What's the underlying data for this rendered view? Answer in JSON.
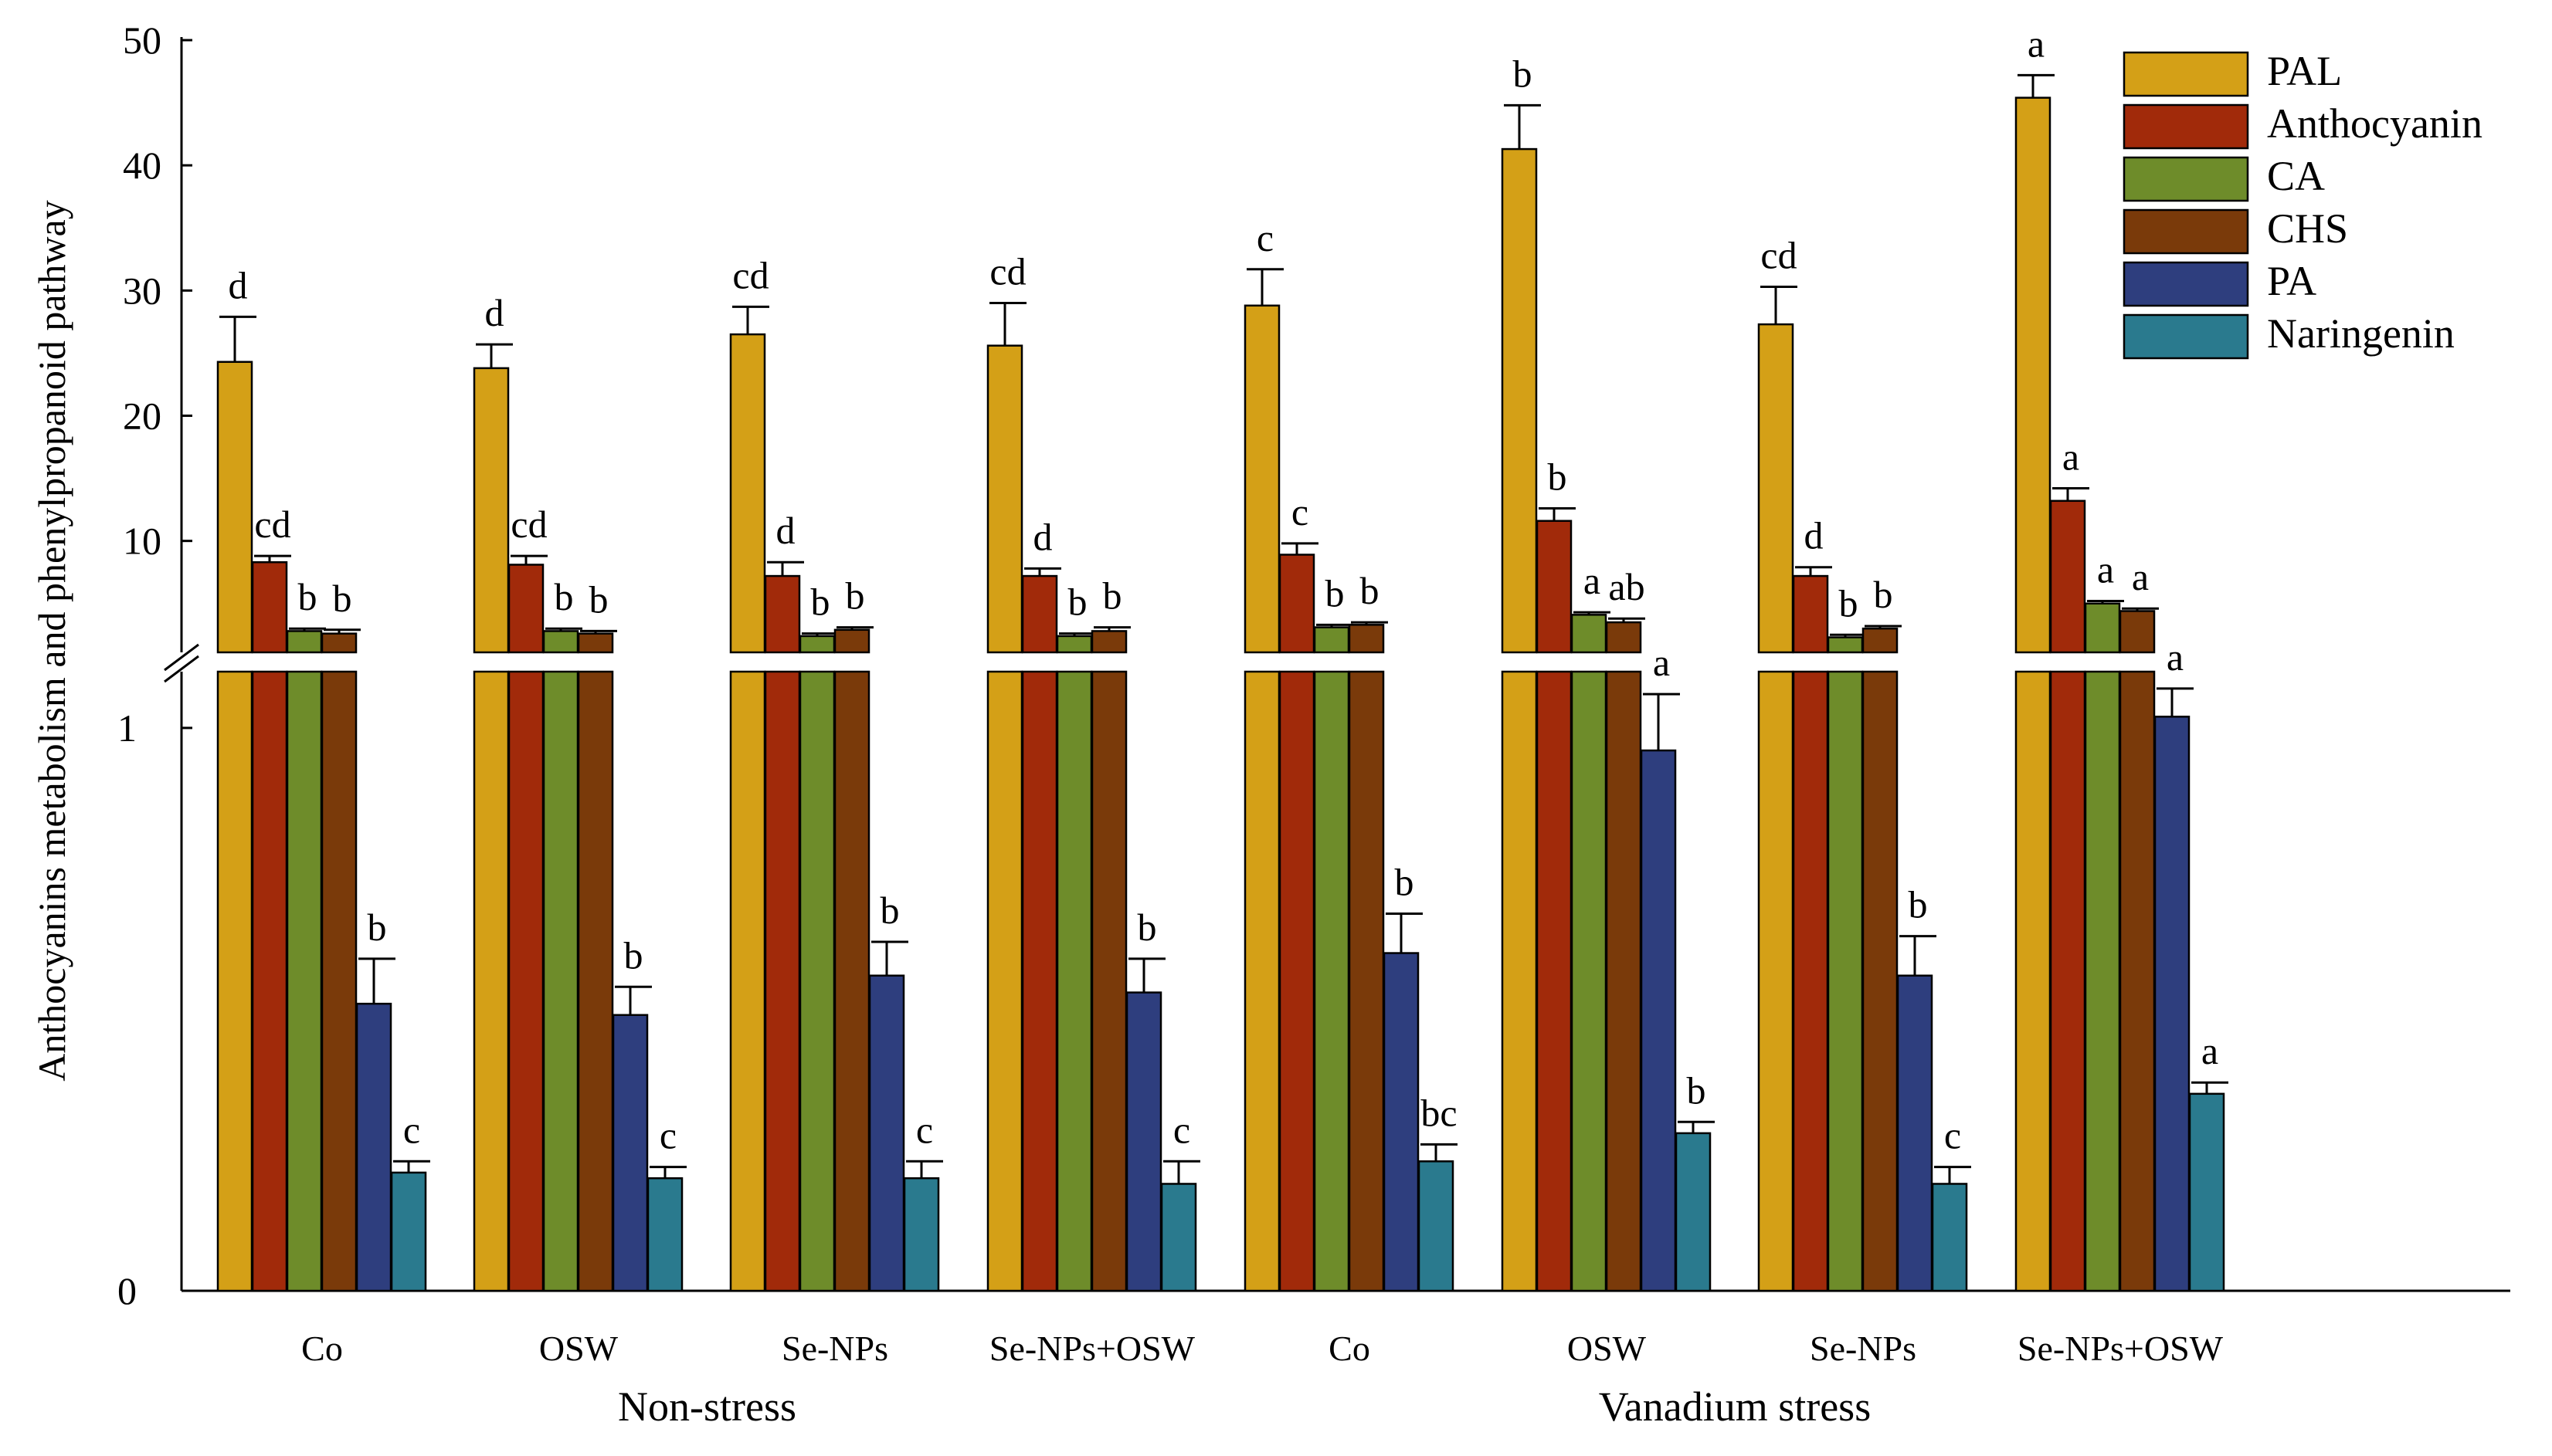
{
  "chart_data": {
    "type": "bar",
    "ylabel": "Anthocyanins metabolism and phenylpropanoid pathway",
    "axis_break": {
      "lower_range": [
        0,
        1.1
      ],
      "upper_range": [
        1.1,
        50
      ]
    },
    "y_ticks_upper": [
      "10",
      "20",
      "30",
      "40",
      "50"
    ],
    "y_ticks_lower": [
      "0",
      "1"
    ],
    "categories": [
      "Co",
      "OSW",
      "Se-NPs",
      "Se-NPs+OSW",
      "Co",
      "OSW",
      "Se-NPs",
      "Se-NPs+OSW"
    ],
    "groups": [
      {
        "label": "Non-stress",
        "span": [
          0,
          3
        ]
      },
      {
        "label": "Vanadium stress",
        "span": [
          4,
          7
        ]
      }
    ],
    "series": [
      {
        "name": "PAL",
        "color": "#D4A017",
        "values": [
          24.3,
          23.8,
          26.5,
          25.6,
          28.8,
          41.3,
          27.3,
          45.4
        ],
        "errors": [
          3.6,
          1.9,
          2.2,
          3.4,
          2.9,
          3.5,
          3.0,
          1.8
        ],
        "letters": [
          "d",
          "d",
          "cd",
          "cd",
          "c",
          "b",
          "cd",
          "a"
        ]
      },
      {
        "name": "Anthocyanin",
        "color": "#A12A0A",
        "values": [
          8.3,
          8.1,
          7.2,
          7.2,
          8.9,
          11.6,
          7.2,
          13.2
        ],
        "errors": [
          0.5,
          0.7,
          1.1,
          0.6,
          0.9,
          1.0,
          0.7,
          1.0
        ],
        "letters": [
          "cd",
          "cd",
          "d",
          "d",
          "c",
          "b",
          "d",
          "a"
        ]
      },
      {
        "name": "CA",
        "color": "#6E8C2A",
        "values": [
          2.8,
          2.8,
          2.4,
          2.4,
          3.1,
          4.1,
          2.3,
          5.0
        ],
        "errors": [
          0.2,
          0.2,
          0.2,
          0.2,
          0.2,
          0.2,
          0.2,
          0.2
        ],
        "letters": [
          "b",
          "b",
          "b",
          "b",
          "b",
          "a",
          "b",
          "a"
        ]
      },
      {
        "name": "CHS",
        "color": "#7A3A0A",
        "values": [
          2.6,
          2.6,
          2.9,
          2.8,
          3.3,
          3.5,
          3.0,
          4.4
        ],
        "errors": [
          0.3,
          0.2,
          0.2,
          0.3,
          0.2,
          0.3,
          0.2,
          0.2
        ],
        "letters": [
          "b",
          "b",
          "b",
          "b",
          "b",
          "ab",
          "b",
          "a"
        ]
      },
      {
        "name": "PA",
        "color": "#2E3E7E",
        "values": [
          0.51,
          0.49,
          0.56,
          0.53,
          0.6,
          0.96,
          0.56,
          1.02
        ],
        "errors": [
          0.08,
          0.05,
          0.06,
          0.06,
          0.07,
          0.1,
          0.07,
          0.05
        ],
        "letters": [
          "b",
          "b",
          "b",
          "b",
          "b",
          "a",
          "b",
          "a"
        ]
      },
      {
        "name": "Naringenin",
        "color": "#2A7A8E",
        "values": [
          0.21,
          0.2,
          0.2,
          0.19,
          0.23,
          0.28,
          0.19,
          0.35
        ],
        "errors": [
          0.02,
          0.02,
          0.03,
          0.04,
          0.03,
          0.02,
          0.03,
          0.02
        ],
        "letters": [
          "c",
          "c",
          "c",
          "c",
          "bc",
          "b",
          "c",
          "a"
        ]
      }
    ]
  }
}
